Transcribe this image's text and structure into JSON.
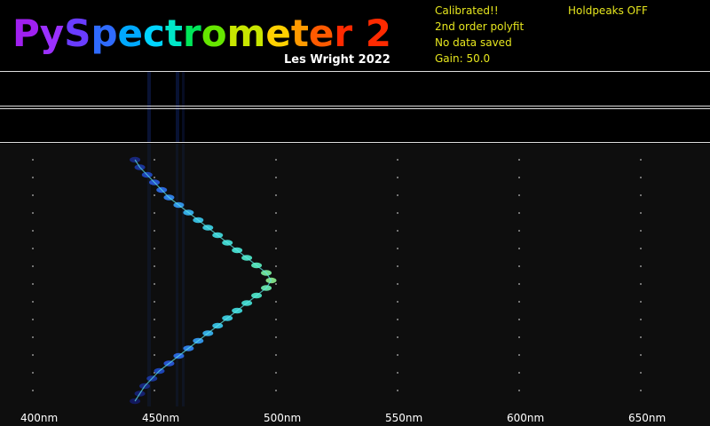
{
  "header": {
    "title": "PySpectrometer 2",
    "title_colors": [
      "#a020f0",
      "#9b30ff",
      "#6a3cff",
      "#2f6bff",
      "#00a8ff",
      "#00d4ff",
      "#00e6c8",
      "#00e65a",
      "#66e600",
      "#c8e600",
      "#ffd000",
      "#ff9a00",
      "#ff5a00",
      "#ff2a00",
      "#ff2a00",
      "#ff2a00"
    ],
    "author": "Les Wright 2022"
  },
  "status": {
    "line1": "Calibrated!!",
    "line2": "2nd order polyfit",
    "line3": "No data saved",
    "line4": "Gain: 50.0",
    "holdpeaks": "Holdpeaks OFF",
    "text_color": "#e6e61e"
  },
  "chart_data": {
    "type": "scatter",
    "xlabel": "",
    "ylabel": "",
    "grid": "dotted vertical lines",
    "x_ticks": [
      "400nm",
      "450nm",
      "500nm",
      "550nm",
      "600nm",
      "650nm"
    ],
    "tick_values_nm": [
      400,
      450,
      500,
      550,
      600,
      650
    ],
    "points_nm": [
      442,
      444,
      447,
      450,
      453,
      456,
      460,
      464,
      468,
      472,
      476,
      480,
      484,
      488,
      492,
      496,
      498,
      496,
      492,
      488,
      484,
      480,
      476,
      472,
      468,
      464,
      460,
      456,
      452,
      449,
      446,
      444,
      442
    ],
    "point_colors": [
      "#1a2a88",
      "#1c3aa8",
      "#1f4ac8",
      "#2a5ae0",
      "#2f70f0",
      "#3388f8",
      "#35a0fa",
      "#38b8f8",
      "#3bcaf0",
      "#3ed6ea",
      "#42e0e4",
      "#46e6de",
      "#4aeada",
      "#50eecf",
      "#5cf2c0",
      "#7cf2a0",
      "#8cf090",
      "#6ef0b0",
      "#50eccc",
      "#46e6da",
      "#42e0e2",
      "#3ed6ea",
      "#3bcaf0",
      "#38b8f8",
      "#35a0fa",
      "#3388f8",
      "#2f70f0",
      "#2a5ae0",
      "#1f4ac8",
      "#1c3aa8",
      "#1a2a88",
      "#16227a",
      "#131a66"
    ]
  }
}
